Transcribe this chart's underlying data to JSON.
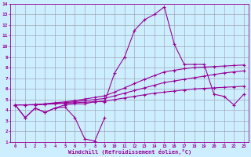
{
  "xlabel": "Windchill (Refroidissement éolien,°C)",
  "x_values": [
    0,
    1,
    2,
    3,
    4,
    5,
    6,
    7,
    8,
    9,
    10,
    11,
    12,
    13,
    14,
    15,
    16,
    17,
    18,
    19,
    20,
    21,
    22,
    23
  ],
  "line_main": [
    4.5,
    3.3,
    4.2,
    3.8,
    4.2,
    4.5,
    4.6,
    4.6,
    4.8,
    4.8,
    7.5,
    9.0,
    11.5,
    12.5,
    13.0,
    13.7,
    10.2,
    8.3,
    8.3,
    8.3,
    5.5,
    5.3,
    4.5,
    5.5
  ],
  "line_jagged": [
    4.5,
    3.3,
    4.2,
    3.8,
    4.2,
    4.3,
    3.3,
    1.3,
    1.1,
    3.3,
    null,
    null,
    null,
    null,
    null,
    null,
    null,
    null,
    null,
    null,
    null,
    null,
    null,
    null
  ],
  "line_reg1": [
    4.5,
    4.5,
    4.5,
    4.55,
    4.6,
    4.65,
    4.7,
    4.75,
    4.8,
    4.85,
    5.0,
    5.15,
    5.3,
    5.45,
    5.6,
    5.7,
    5.8,
    5.9,
    6.0,
    6.05,
    6.1,
    6.15,
    6.2,
    6.25
  ],
  "line_reg2": [
    4.5,
    4.5,
    4.52,
    4.57,
    4.65,
    4.7,
    4.8,
    4.9,
    5.0,
    5.1,
    5.35,
    5.6,
    5.85,
    6.1,
    6.35,
    6.6,
    6.75,
    6.9,
    7.05,
    7.2,
    7.35,
    7.5,
    7.6,
    7.7
  ],
  "line_reg3": [
    4.5,
    4.5,
    4.53,
    4.6,
    4.7,
    4.78,
    4.9,
    5.05,
    5.2,
    5.35,
    5.7,
    6.1,
    6.5,
    6.9,
    7.25,
    7.6,
    7.75,
    7.9,
    8.0,
    8.05,
    8.1,
    8.15,
    8.2,
    8.25
  ],
  "color": "#990099",
  "bg_color": "#cceeff",
  "grid_color": "#9999aa",
  "ylim": [
    1,
    14
  ],
  "xlim": [
    0,
    23
  ],
  "yticks": [
    1,
    2,
    3,
    4,
    5,
    6,
    7,
    8,
    9,
    10,
    11,
    12,
    13,
    14
  ],
  "xticks": [
    0,
    1,
    2,
    3,
    4,
    5,
    6,
    7,
    8,
    9,
    10,
    11,
    12,
    13,
    14,
    15,
    16,
    17,
    18,
    19,
    20,
    21,
    22,
    23
  ]
}
